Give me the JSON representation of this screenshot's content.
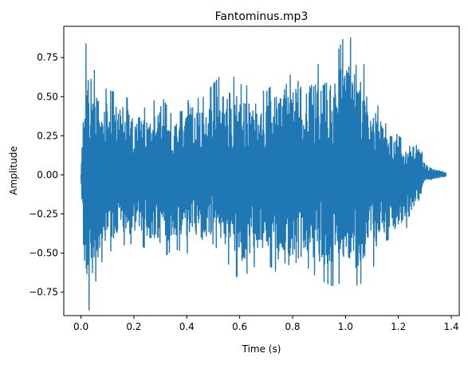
{
  "chart_data": {
    "type": "line",
    "title": "Fantominus.mp3",
    "xlabel": "Time (s)",
    "ylabel": "Amplitude",
    "xlim": [
      -0.065,
      1.43
    ],
    "ylim": [
      -0.9,
      0.95
    ],
    "xticks": [
      {
        "value": 0.0,
        "label": "0.0"
      },
      {
        "value": 0.2,
        "label": "0.2"
      },
      {
        "value": 0.4,
        "label": "0.4"
      },
      {
        "value": 0.6,
        "label": "0.6"
      },
      {
        "value": 0.8,
        "label": "0.8"
      },
      {
        "value": 1.0,
        "label": "1.0"
      },
      {
        "value": 1.2,
        "label": "1.2"
      },
      {
        "value": 1.4,
        "label": "1.4"
      }
    ],
    "yticks": [
      {
        "value": -0.75,
        "label": "−0.75"
      },
      {
        "value": -0.5,
        "label": "−0.50"
      },
      {
        "value": -0.25,
        "label": "−0.25"
      },
      {
        "value": 0.0,
        "label": "0.00"
      },
      {
        "value": 0.25,
        "label": "0.25"
      },
      {
        "value": 0.5,
        "label": "0.50"
      },
      {
        "value": 0.75,
        "label": "0.75"
      }
    ],
    "grid": false,
    "legend": "none",
    "series_color": "#1f77b4",
    "series": [
      {
        "x": [
          0.0,
          0.01,
          0.02,
          0.03,
          0.04,
          0.05,
          0.07,
          0.1,
          0.15,
          0.2,
          0.25,
          0.3,
          0.35,
          0.4,
          0.45,
          0.5,
          0.55,
          0.6,
          0.65,
          0.7,
          0.75,
          0.8,
          0.85,
          0.9,
          0.95,
          1.0,
          1.05,
          1.1,
          1.15,
          1.2,
          1.25,
          1.28,
          1.3,
          1.33,
          1.36,
          1.38
        ],
        "upper": [
          0.0,
          0.55,
          0.87,
          0.91,
          0.78,
          0.67,
          0.6,
          0.54,
          0.52,
          0.46,
          0.42,
          0.52,
          0.36,
          0.61,
          0.47,
          0.58,
          0.68,
          0.58,
          0.56,
          0.53,
          0.63,
          0.78,
          0.65,
          0.71,
          0.7,
          0.91,
          0.82,
          0.53,
          0.33,
          0.25,
          0.17,
          0.2,
          0.08,
          0.04,
          0.03,
          0.02
        ],
        "lower": [
          0.0,
          -0.62,
          -0.85,
          -0.87,
          -0.78,
          -0.72,
          -0.58,
          -0.5,
          -0.45,
          -0.44,
          -0.47,
          -0.55,
          -0.47,
          -0.5,
          -0.53,
          -0.44,
          -0.55,
          -0.68,
          -0.59,
          -0.56,
          -0.64,
          -0.7,
          -0.58,
          -0.67,
          -0.71,
          -0.68,
          -0.71,
          -0.61,
          -0.42,
          -0.4,
          -0.3,
          -0.15,
          -0.04,
          -0.03,
          -0.02,
          -0.01
        ]
      }
    ]
  }
}
